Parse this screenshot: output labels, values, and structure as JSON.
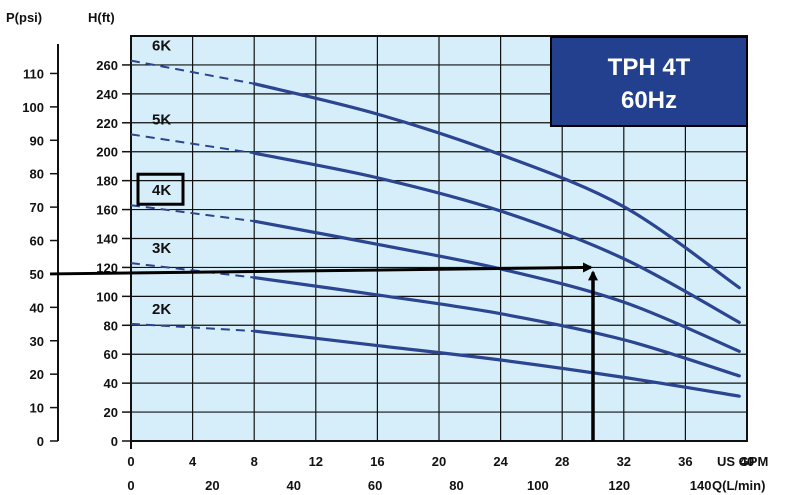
{
  "chart_data": {
    "type": "line",
    "title_box": {
      "line1": "TPH 4T",
      "line2": "60Hz",
      "fill": "#23408e"
    },
    "x": {
      "label": "US GPM",
      "ticks": [
        0,
        4,
        8,
        12,
        16,
        20,
        24,
        28,
        32,
        36,
        40
      ],
      "lim": [
        0,
        40
      ]
    },
    "x2": {
      "label": "Q(L/min)",
      "ticks": [
        0,
        20,
        40,
        60,
        80,
        100,
        120,
        140
      ]
    },
    "y": {
      "label": "H(ft)",
      "ticks": [
        0,
        20,
        40,
        60,
        80,
        100,
        120,
        140,
        160,
        180,
        200,
        220,
        240,
        260
      ],
      "lim": [
        0,
        280
      ]
    },
    "y2": {
      "label": "P(psi)",
      "ticks": [
        0,
        10,
        20,
        30,
        40,
        50,
        60,
        70,
        80,
        90,
        100,
        110
      ]
    },
    "grid": true,
    "plot_background": "#d6eefa",
    "curve_color": "#2b4590",
    "series": [
      {
        "name": "2K",
        "points": [
          [
            0,
            81
          ],
          [
            8,
            76
          ],
          [
            16,
            66
          ],
          [
            24,
            56
          ],
          [
            32,
            44
          ],
          [
            39.5,
            31
          ]
        ]
      },
      {
        "name": "3K",
        "points": [
          [
            0,
            123
          ],
          [
            8,
            113
          ],
          [
            16,
            101
          ],
          [
            24,
            88
          ],
          [
            32,
            70
          ],
          [
            39.5,
            45
          ]
        ]
      },
      {
        "name": "4K",
        "points": [
          [
            0,
            163
          ],
          [
            8,
            152
          ],
          [
            16,
            136
          ],
          [
            24,
            119
          ],
          [
            32,
            96
          ],
          [
            39.5,
            62
          ]
        ]
      },
      {
        "name": "5K",
        "points": [
          [
            0,
            212
          ],
          [
            8,
            199
          ],
          [
            16,
            182
          ],
          [
            24,
            159
          ],
          [
            32,
            126
          ],
          [
            39.5,
            82
          ]
        ]
      },
      {
        "name": "6K",
        "points": [
          [
            0,
            263
          ],
          [
            8,
            247
          ],
          [
            16,
            226
          ],
          [
            24,
            198
          ],
          [
            32,
            162
          ],
          [
            39.5,
            106
          ]
        ]
      }
    ],
    "dashed_until_x": 8,
    "highlighted_series": "4K",
    "annotation_arrows": {
      "duty_flow_gpm": 30,
      "duty_head_ft": 120,
      "duty_pressure_psi": 50
    }
  }
}
